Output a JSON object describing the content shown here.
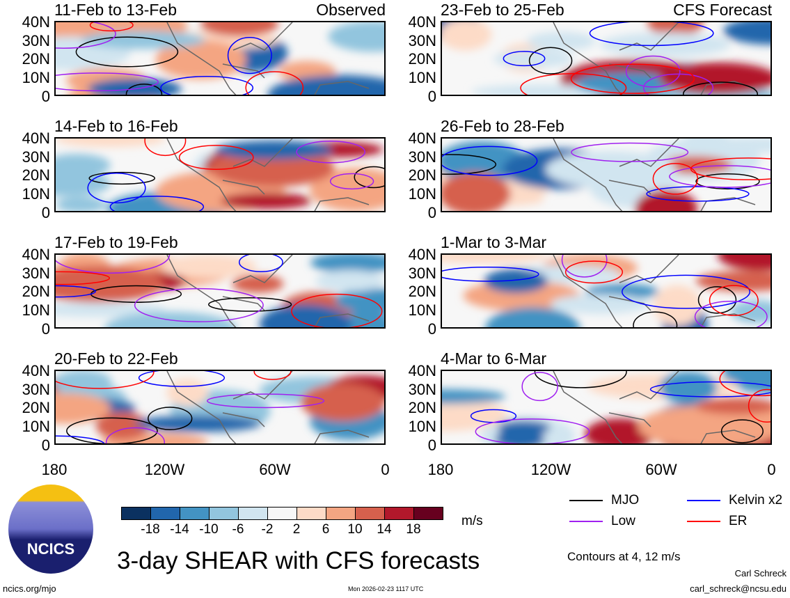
{
  "panels_left": [
    {
      "title": "11-Feb to 13-Feb",
      "label": "Observed"
    },
    {
      "title": "14-Feb to 16-Feb",
      "label": ""
    },
    {
      "title": "17-Feb to 19-Feb",
      "label": ""
    },
    {
      "title": "20-Feb to 22-Feb",
      "label": ""
    }
  ],
  "panels_right": [
    {
      "title": "23-Feb to 25-Feb",
      "label": "CFS Forecast"
    },
    {
      "title": "26-Feb to 28-Feb",
      "label": ""
    },
    {
      "title": "1-Mar to 3-Mar",
      "label": ""
    },
    {
      "title": "4-Mar to 6-Mar",
      "label": ""
    }
  ],
  "chart_data": {
    "type": "heatmap",
    "title": "3-day SHEAR with CFS forecasts",
    "lat_ticks": [
      "40N",
      "30N",
      "20N",
      "10N",
      "0"
    ],
    "lon_ticks": [
      "180",
      "120W",
      "60W",
      "0"
    ],
    "colorbar": {
      "unit": "m/s",
      "ticks": [
        "-18",
        "-14",
        "-10",
        "-6",
        "-2",
        "2",
        "6",
        "10",
        "14",
        "18"
      ],
      "colors": [
        "#0b3160",
        "#2166ac",
        "#4393c3",
        "#92c5de",
        "#d1e5f0",
        "#f7f7f7",
        "#fddbc7",
        "#f4a582",
        "#d6604d",
        "#b2182b",
        "#67001f"
      ]
    },
    "legend": [
      {
        "name": "MJO",
        "color": "#000000"
      },
      {
        "name": "Kelvin x2",
        "color": "#0000ff"
      },
      {
        "name": "Low",
        "color": "#a020f0"
      },
      {
        "name": "ER",
        "color": "#ff0000"
      }
    ],
    "contour_note": "Contours at 4, 12 m/s"
  },
  "footer": {
    "logo_text": "NCICS",
    "url": "ncics.org/mjo",
    "timestamp": "Mon 2026-02-23 1117 UTC",
    "author": "Carl Schreck",
    "email": "carl_schreck@ncsu.edu"
  }
}
